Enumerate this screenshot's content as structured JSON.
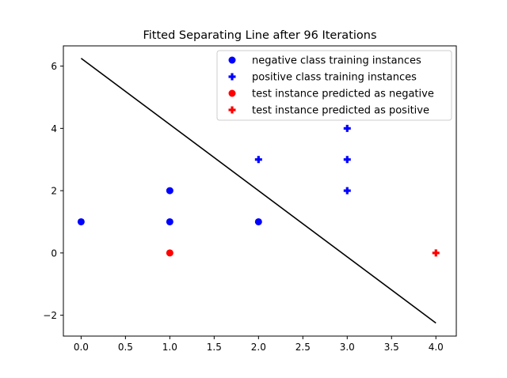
{
  "chart_data": {
    "type": "scatter",
    "title": "Fitted Separating Line after 96 Iterations",
    "xlabel": "",
    "ylabel": "",
    "xlim": [
      -0.2,
      4.23
    ],
    "ylim": [
      -2.67,
      6.65
    ],
    "xticks": [
      "0.0",
      "0.5",
      "1.0",
      "1.5",
      "2.0",
      "2.5",
      "3.0",
      "3.5",
      "4.0"
    ],
    "xtick_values": [
      0,
      0.5,
      1,
      1.5,
      2,
      2.5,
      3,
      3.5,
      4
    ],
    "yticks": [
      "−2",
      "0",
      "2",
      "4",
      "6"
    ],
    "ytick_values": [
      -2,
      0,
      2,
      4,
      6
    ],
    "grid": false,
    "legend_position": "upper-right",
    "series": [
      {
        "name": "negative class training instances",
        "marker": "circle",
        "color": "#0000ff",
        "points": [
          [
            0,
            1
          ],
          [
            1,
            1
          ],
          [
            1,
            2
          ],
          [
            2,
            1
          ]
        ]
      },
      {
        "name": "positive class training instances",
        "marker": "plus",
        "color": "#0000ff",
        "points": [
          [
            2,
            3
          ],
          [
            3,
            2
          ],
          [
            3,
            3
          ],
          [
            3,
            4
          ]
        ]
      },
      {
        "name": "test instance predicted as negative",
        "marker": "circle",
        "color": "#ff0000",
        "points": [
          [
            1,
            0
          ]
        ]
      },
      {
        "name": "test instance predicted as positive",
        "marker": "plus",
        "color": "#ff0000",
        "points": [
          [
            4,
            0
          ]
        ]
      }
    ],
    "separating_line": {
      "color": "#000000",
      "points": [
        [
          0,
          6.25
        ],
        [
          4,
          -2.25
        ]
      ]
    }
  }
}
